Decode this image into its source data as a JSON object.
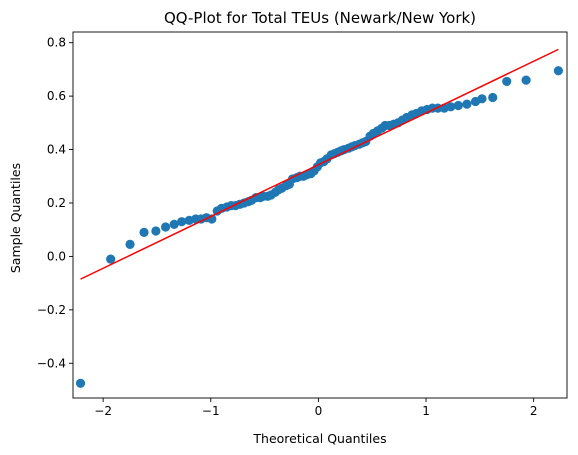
{
  "chart_data": {
    "type": "scatter",
    "title": "QQ-Plot for Total TEUs (Newark/New York)",
    "xlabel": "Theoretical Quantiles",
    "ylabel": "Sample Quantiles",
    "xlim": [
      -2.28,
      2.31
    ],
    "ylim": [
      -0.53,
      0.84
    ],
    "xticks": [
      -2,
      -1,
      0,
      1,
      2
    ],
    "xtick_labels": [
      "−2",
      "−1",
      "0",
      "1",
      "2"
    ],
    "yticks": [
      -0.4,
      -0.2,
      0.0,
      0.2,
      0.4,
      0.6,
      0.8
    ],
    "ytick_labels": [
      "−0.4",
      "−0.2",
      "0.0",
      "0.2",
      "0.4",
      "0.6",
      "0.8"
    ],
    "grid": false,
    "colors": {
      "points": "#1f77b4",
      "line": "#ff0000"
    },
    "reference_line": {
      "x": [
        -2.21,
        2.23
      ],
      "y": [
        -0.085,
        0.775
      ]
    },
    "points": {
      "x": [
        -2.21,
        -1.93,
        -1.75,
        -1.62,
        -1.51,
        -1.42,
        -1.34,
        -1.27,
        -1.2,
        -1.14,
        -1.09,
        -1.04,
        -0.99,
        -0.94,
        -0.9,
        -0.85,
        -0.81,
        -0.77,
        -0.73,
        -0.69,
        -0.65,
        -0.62,
        -0.58,
        -0.54,
        -0.51,
        -0.47,
        -0.44,
        -0.4,
        -0.37,
        -0.34,
        -0.3,
        -0.27,
        -0.24,
        -0.2,
        -0.17,
        -0.14,
        -0.11,
        -0.07,
        -0.04,
        -0.01,
        0.02,
        0.05,
        0.08,
        0.12,
        0.15,
        0.18,
        0.21,
        0.24,
        0.28,
        0.31,
        0.34,
        0.38,
        0.41,
        0.44,
        0.48,
        0.51,
        0.55,
        0.59,
        0.62,
        0.66,
        0.7,
        0.74,
        0.78,
        0.82,
        0.87,
        0.91,
        0.96,
        1.01,
        1.06,
        1.11,
        1.17,
        1.23,
        1.3,
        1.38,
        1.46,
        1.52,
        1.62,
        1.75,
        1.93,
        2.23
      ],
      "y": [
        -0.475,
        -0.01,
        0.045,
        0.09,
        0.095,
        0.11,
        0.12,
        0.13,
        0.135,
        0.14,
        0.14,
        0.145,
        0.14,
        0.17,
        0.18,
        0.185,
        0.19,
        0.19,
        0.195,
        0.2,
        0.205,
        0.21,
        0.22,
        0.22,
        0.225,
        0.225,
        0.23,
        0.24,
        0.25,
        0.255,
        0.265,
        0.27,
        0.29,
        0.295,
        0.3,
        0.3,
        0.305,
        0.31,
        0.32,
        0.335,
        0.35,
        0.355,
        0.365,
        0.38,
        0.385,
        0.39,
        0.395,
        0.4,
        0.405,
        0.41,
        0.415,
        0.42,
        0.425,
        0.43,
        0.45,
        0.46,
        0.47,
        0.48,
        0.49,
        0.49,
        0.495,
        0.5,
        0.51,
        0.52,
        0.53,
        0.535,
        0.545,
        0.55,
        0.555,
        0.555,
        0.555,
        0.56,
        0.565,
        0.57,
        0.58,
        0.59,
        0.595,
        0.655,
        0.66,
        0.695
      ]
    }
  }
}
